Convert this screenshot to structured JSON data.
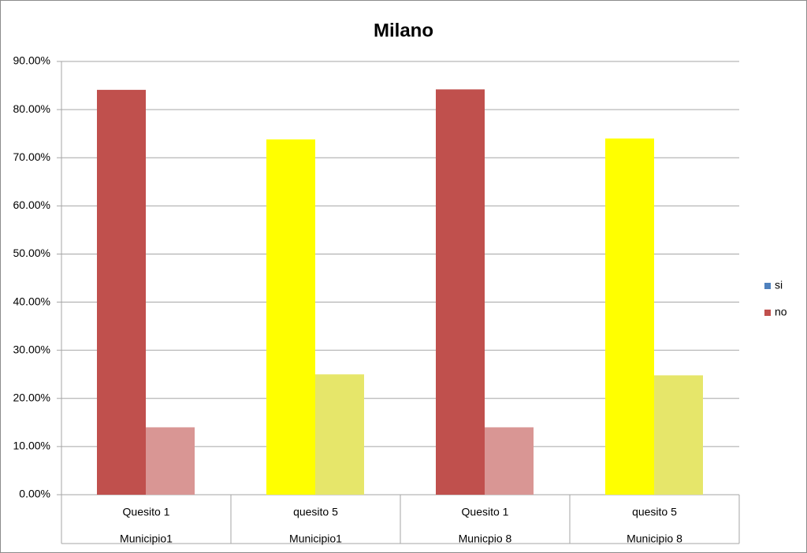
{
  "chart_data": {
    "type": "bar",
    "title": "Milano",
    "categories": [
      "Quesito 1",
      "quesito 5",
      "Quesito 1",
      "quesito 5"
    ],
    "category_groups": [
      "Municipio1",
      "Municipio1",
      "Municpio 8",
      "Municipio 8"
    ],
    "series": [
      {
        "name": "si",
        "color": "#4f81bd",
        "point_colors": [
          "#c0504d",
          "#ffff00",
          "#c0504d",
          "#ffff00"
        ],
        "values": [
          84.1,
          73.8,
          84.2,
          74.0
        ]
      },
      {
        "name": "no",
        "color": "#c0504d",
        "point_colors": [
          "#d99694",
          "#e6e66a",
          "#d99694",
          "#e6e66a"
        ],
        "values": [
          14.0,
          25.0,
          14.0,
          24.8
        ]
      }
    ],
    "ylim": [
      0,
      90
    ],
    "yticks": [
      {
        "value": 0,
        "label": "0.00%"
      },
      {
        "value": 10,
        "label": "10.00%"
      },
      {
        "value": 20,
        "label": "20.00%"
      },
      {
        "value": 30,
        "label": "30.00%"
      },
      {
        "value": 40,
        "label": "40.00%"
      },
      {
        "value": 50,
        "label": "50.00%"
      },
      {
        "value": 60,
        "label": "60.00%"
      },
      {
        "value": 70,
        "label": "70.00%"
      },
      {
        "value": 80,
        "label": "80.00%"
      },
      {
        "value": 90,
        "label": "90.00%"
      }
    ],
    "grid": true,
    "legend": "right"
  }
}
